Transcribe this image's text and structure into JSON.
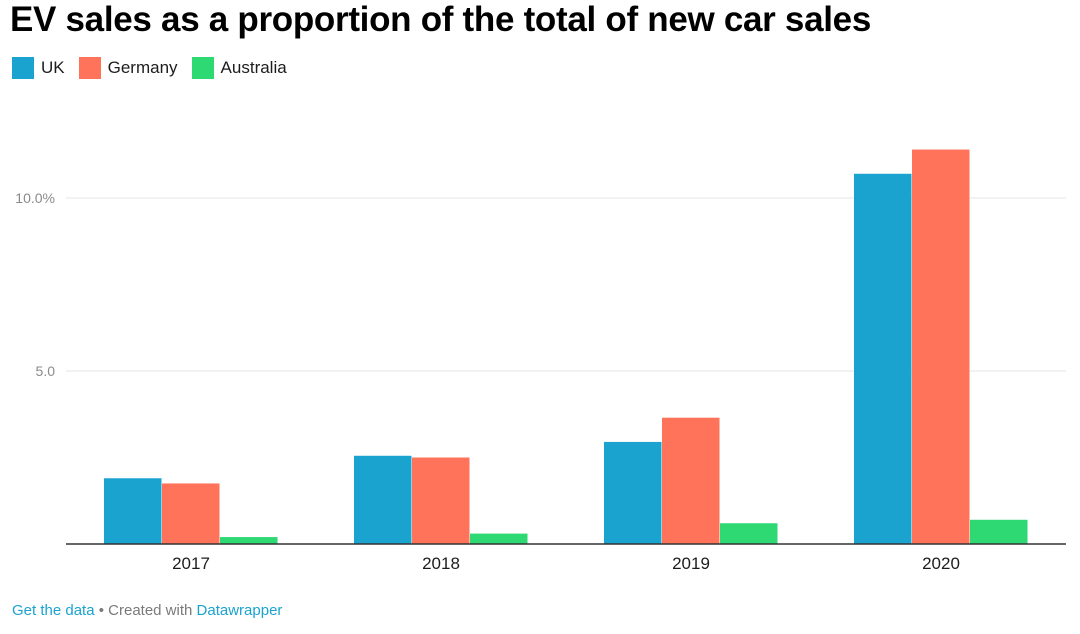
{
  "chart_data": {
    "type": "bar",
    "title": "EV sales as a proportion of the total of new car sales",
    "categories": [
      "2017",
      "2018",
      "2019",
      "2020"
    ],
    "series": [
      {
        "name": "UK",
        "color": "#1ba3cf",
        "values": [
          1.9,
          2.55,
          2.95,
          10.7
        ]
      },
      {
        "name": "Germany",
        "color": "#fe7359",
        "values": [
          1.75,
          2.5,
          3.65,
          11.4
        ]
      },
      {
        "name": "Australia",
        "color": "#2ed872",
        "values": [
          0.2,
          0.3,
          0.6,
          0.7
        ]
      }
    ],
    "y_ticks": [
      {
        "value": 10,
        "label": "10.0%"
      },
      {
        "value": 5,
        "label": "5.0"
      }
    ],
    "ylim": [
      0,
      12
    ],
    "grid": true,
    "legend_position": "top-left"
  },
  "footer": {
    "get_data": "Get the data",
    "separator": " • Created with ",
    "tool": "Datawrapper"
  }
}
